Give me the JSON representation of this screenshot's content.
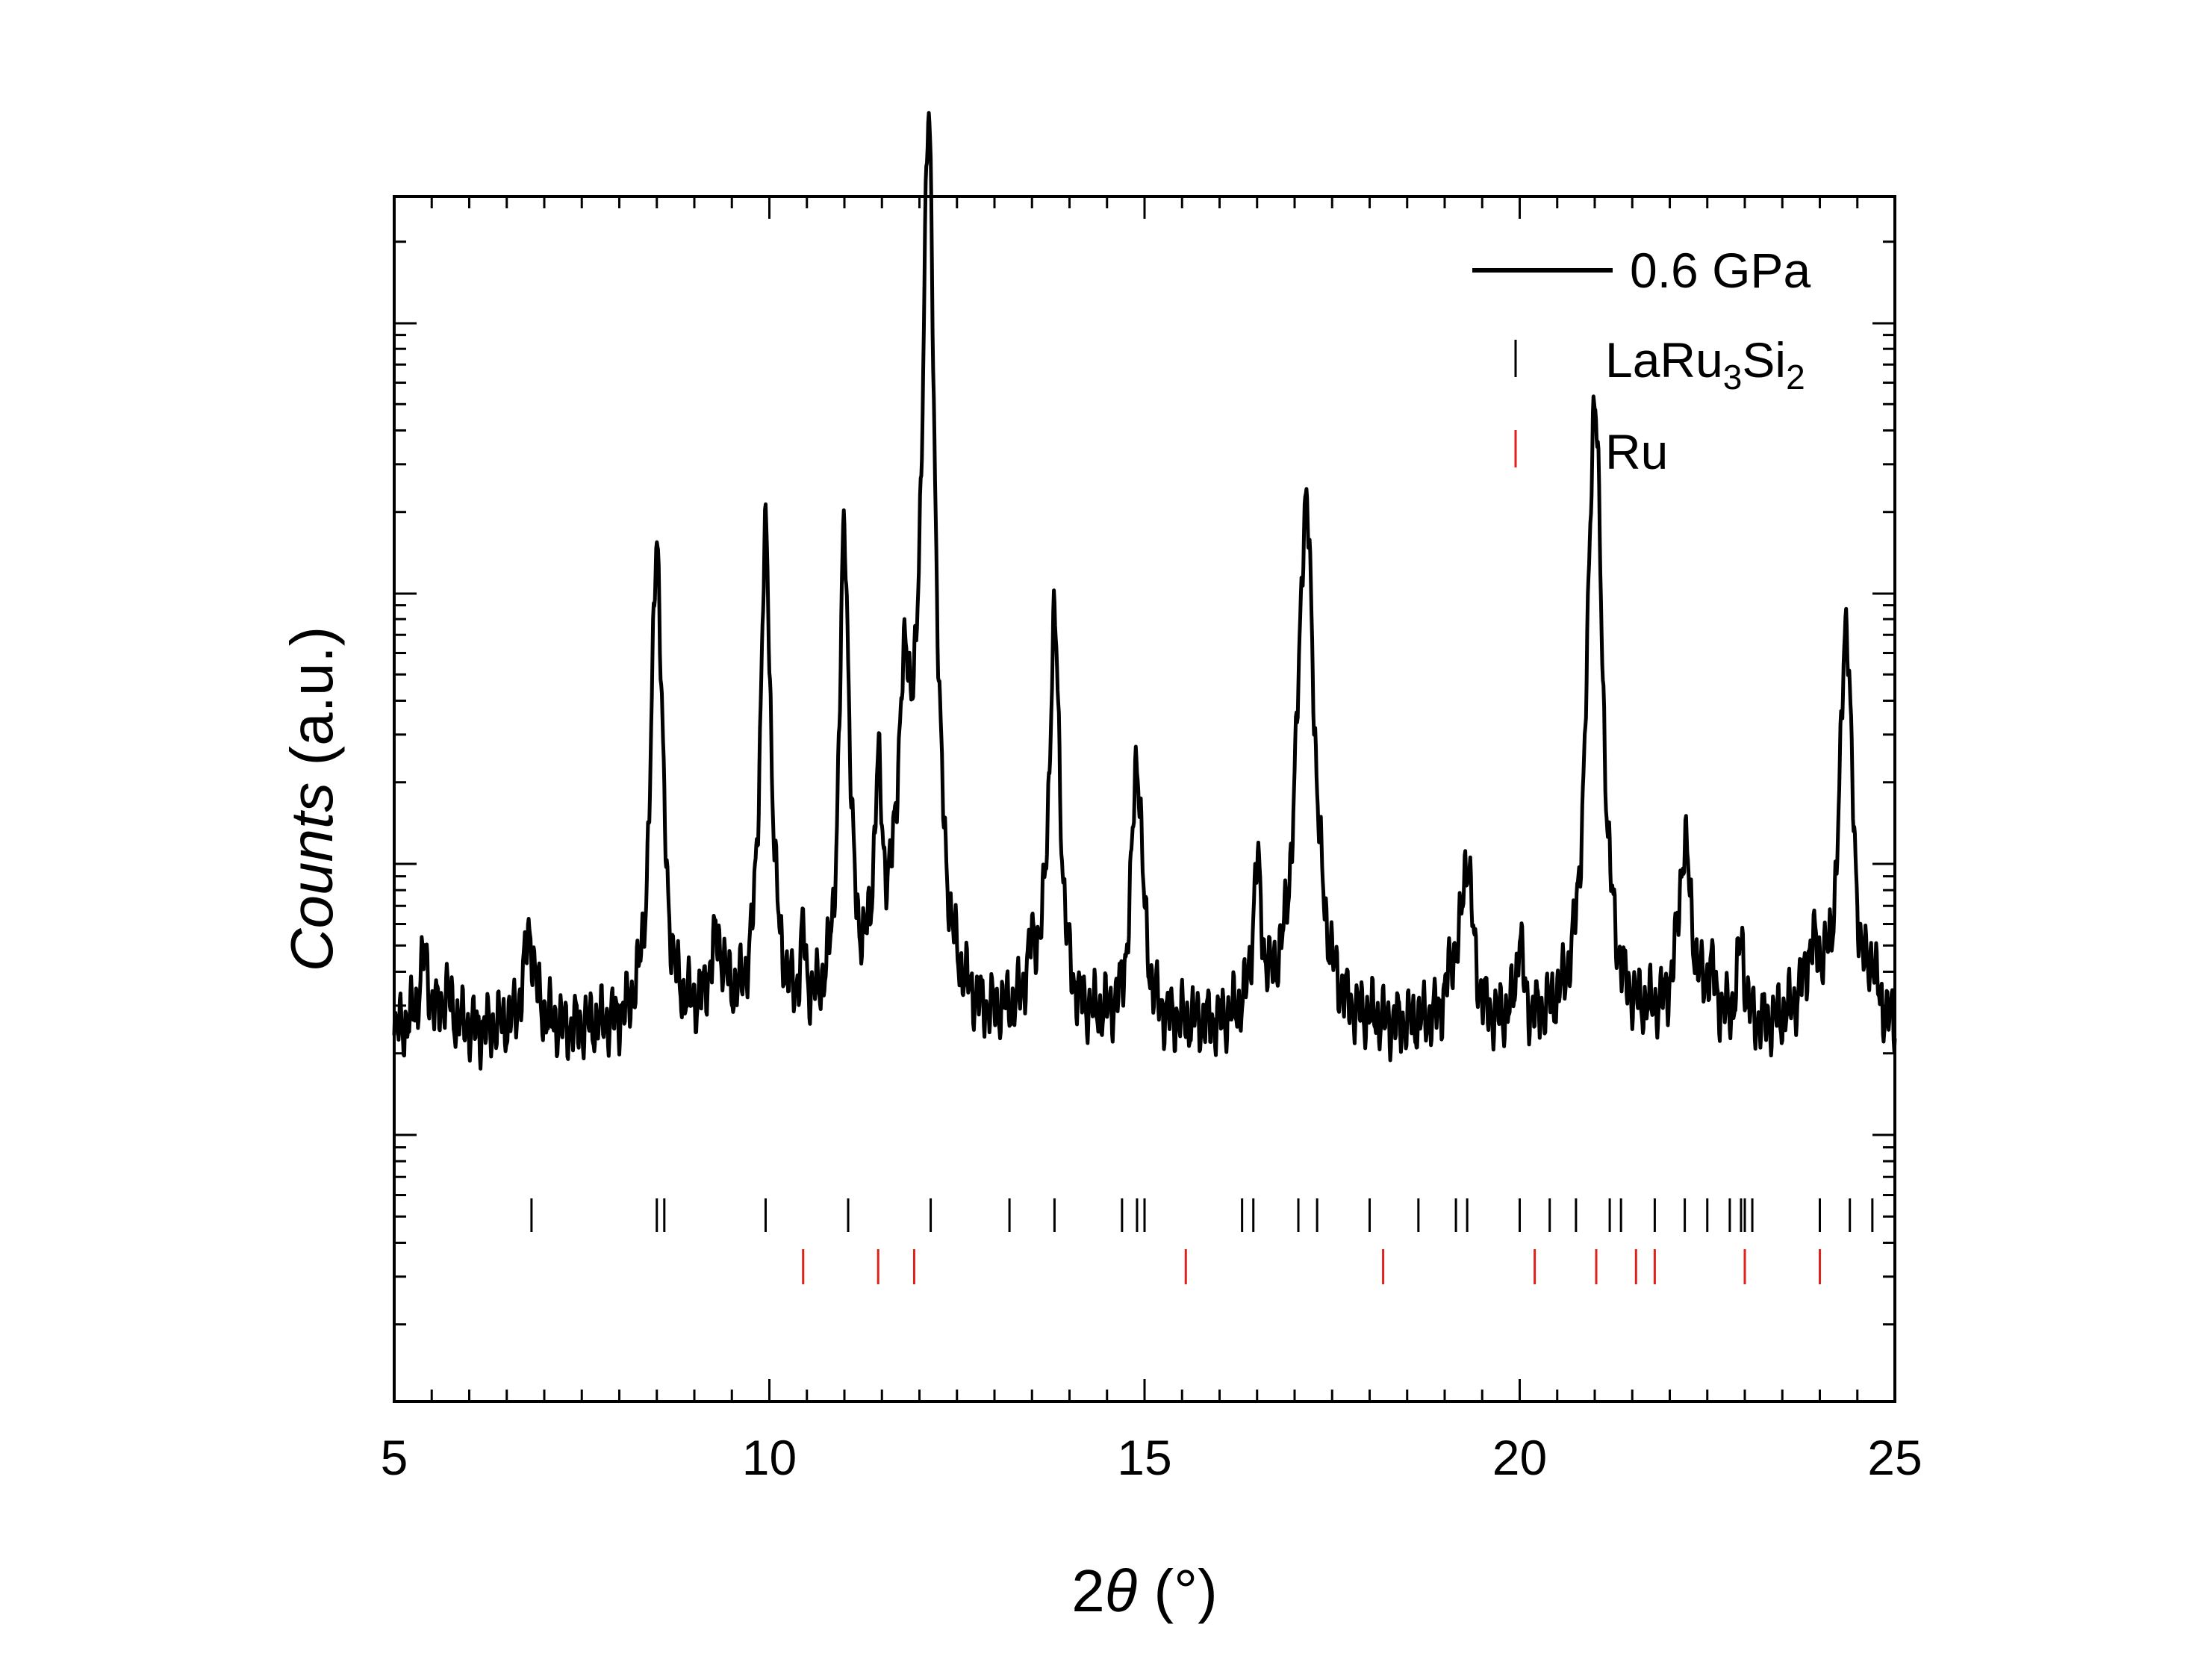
{
  "chart_data": {
    "type": "line",
    "xlabel_prefix": "2",
    "xlabel_symbol": "θ",
    "xlabel_suffix": " (°)",
    "ylabel_italic": "Counts",
    "ylabel_suffix": " (a.u.)",
    "xlim": [
      5,
      25
    ],
    "xticks": [
      5,
      10,
      15,
      20,
      25
    ],
    "ylim": [
      0,
      1
    ],
    "yscale": "log (no tick labels)",
    "legend_position": "top-right",
    "series": [
      {
        "name": "0.6 GPa",
        "color": "#000000",
        "baseline": 0.165,
        "peaks": [
          {
            "x": 5.4,
            "h": 0.085,
            "w": 0.08
          },
          {
            "x": 5.7,
            "h": 0.04,
            "w": 0.08
          },
          {
            "x": 6.8,
            "h": 0.115,
            "w": 0.09
          },
          {
            "x": 8.5,
            "h": 0.58,
            "w": 0.09
          },
          {
            "x": 9.3,
            "h": 0.09,
            "w": 0.12
          },
          {
            "x": 9.95,
            "h": 0.57,
            "w": 0.09
          },
          {
            "x": 10.45,
            "h": 0.08,
            "w": 0.04
          },
          {
            "x": 11.0,
            "h": 0.57,
            "w": 0.08
          },
          {
            "x": 11.45,
            "h": 0.23,
            "w": 0.07
          },
          {
            "x": 11.8,
            "h": 0.32,
            "w": 0.13
          },
          {
            "x": 12.12,
            "h": 1.02,
            "w": 0.11
          },
          {
            "x": 13.8,
            "h": 0.47,
            "w": 0.09
          },
          {
            "x": 13.5,
            "h": 0.06,
            "w": 0.1
          },
          {
            "x": 14.9,
            "h": 0.315,
            "w": 0.09
          },
          {
            "x": 16.5,
            "h": 0.17,
            "w": 0.07
          },
          {
            "x": 17.15,
            "h": 0.62,
            "w": 0.14
          },
          {
            "x": 19.3,
            "h": 0.19,
            "w": 0.09
          },
          {
            "x": 19.1,
            "h": 0.05,
            "w": 0.1
          },
          {
            "x": 20.0,
            "h": 0.1,
            "w": 0.05
          },
          {
            "x": 21.0,
            "h": 0.75,
            "w": 0.12
          },
          {
            "x": 22.2,
            "h": 0.21,
            "w": 0.11
          },
          {
            "x": 22.55,
            "h": 0.05,
            "w": 0.08
          },
          {
            "x": 22.95,
            "h": 0.1,
            "w": 0.05
          },
          {
            "x": 24.35,
            "h": 0.48,
            "w": 0.1
          },
          {
            "x": 23.9,
            "h": 0.08,
            "w": 0.15
          },
          {
            "x": 24.7,
            "h": 0.05,
            "w": 0.06
          }
        ]
      },
      {
        "name": "LaRu",
        "subscript1": "3",
        "name_mid": "Si",
        "subscript2": "2",
        "type": "reflection_ticks",
        "color": "#000000",
        "x": [
          6.83,
          8.5,
          8.6,
          9.95,
          11.05,
          12.15,
          13.2,
          13.8,
          14.7,
          14.9,
          15.0,
          16.3,
          16.45,
          17.05,
          17.3,
          18.0,
          18.65,
          19.15,
          19.3,
          20.0,
          20.4,
          20.75,
          21.2,
          21.35,
          21.8,
          22.2,
          22.5,
          22.8,
          22.95,
          23.0,
          23.1,
          24.0,
          24.4,
          24.7
        ]
      },
      {
        "name": "Ru",
        "type": "reflection_ticks",
        "color": "#e0201a",
        "x": [
          10.45,
          11.45,
          11.93,
          15.55,
          18.18,
          20.2,
          21.02,
          21.55,
          21.8,
          23.0,
          24.0
        ]
      }
    ]
  }
}
